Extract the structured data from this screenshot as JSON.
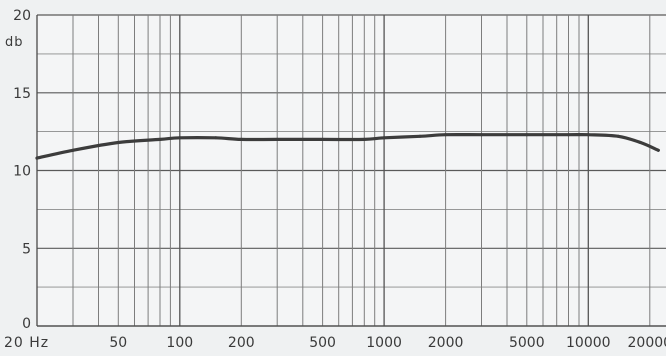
{
  "chart_data": {
    "type": "line",
    "title": "",
    "xlabel": "",
    "ylabel": "",
    "y_unit": "db",
    "x_scale": "log",
    "xlim": [
      20,
      24000
    ],
    "ylim": [
      0,
      20
    ],
    "grid": true,
    "x_ticks": [
      20,
      50,
      100,
      200,
      500,
      1000,
      2000,
      5000,
      10000,
      20000
    ],
    "x_tick_labels": [
      "20 Hz",
      "50",
      "100",
      "200",
      "500",
      "1000",
      "2000",
      "5000",
      "10000",
      "20000"
    ],
    "y_ticks": [
      0,
      5,
      10,
      15,
      20
    ],
    "y_tick_labels": [
      "0",
      "5",
      "10",
      "15",
      "20"
    ],
    "series": [
      {
        "color": "#3c3c3c",
        "x": [
          20,
          30,
          50,
          80,
          100,
          150,
          200,
          300,
          500,
          800,
          1000,
          1500,
          2000,
          3000,
          5000,
          8000,
          10000,
          14000,
          18000,
          22000
        ],
        "values": [
          10.8,
          11.3,
          11.8,
          12.0,
          12.1,
          12.1,
          12.0,
          12.0,
          12.0,
          12.0,
          12.1,
          12.2,
          12.3,
          12.3,
          12.3,
          12.3,
          12.3,
          12.2,
          11.8,
          11.3
        ]
      }
    ]
  }
}
